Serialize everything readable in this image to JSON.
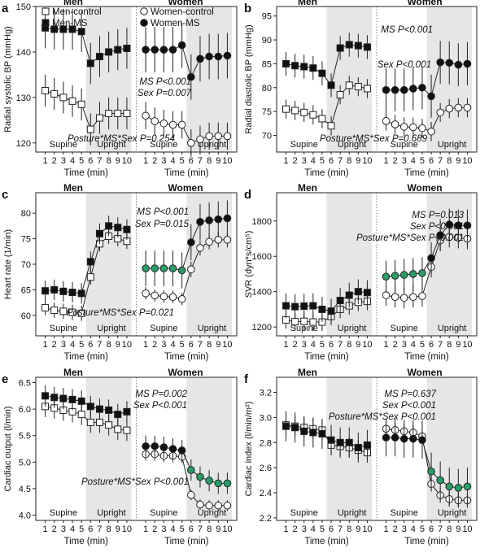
{
  "chart_data": [
    {
      "type": "line",
      "panel": "a",
      "ylabel": "Radial systolic BP (mmHg)",
      "xlabel": "Time (min)",
      "ylim": [
        118,
        150
      ],
      "yticks": [
        120,
        130,
        140,
        150
      ],
      "groups": [
        "Men",
        "Women"
      ],
      "phase_labels": [
        "Supine",
        "Upright"
      ],
      "x": [
        1,
        2,
        3,
        4,
        5,
        6,
        7,
        8,
        9,
        10
      ],
      "xtick_labels": [
        "1",
        "2",
        "3",
        "4",
        "5",
        "6",
        "7",
        "8",
        "9",
        "10"
      ],
      "legend": [
        "Men-control",
        "Men-MS",
        "Women-control",
        "Women-MS"
      ],
      "annotations": [
        "MS P<0.001",
        "Sex P=0.007",
        "Posture*MS*Sex P=0.254"
      ],
      "series": [
        {
          "name": "Men-control",
          "group": "Men",
          "marker": "open-square",
          "values": [
            131.5,
            130.8,
            130,
            129.2,
            128.5,
            123,
            125.5,
            126.5,
            126.5,
            126.5
          ],
          "err": [
            3.5,
            3.5,
            3.5,
            3.5,
            3.5,
            3.5,
            3.5,
            3.5,
            3.5,
            3.5
          ]
        },
        {
          "name": "Men-MS",
          "group": "Men",
          "marker": "filled-square",
          "values": [
            145.3,
            145,
            145,
            145,
            144.5,
            137.5,
            139,
            140,
            140.5,
            140.8
          ],
          "err": [
            4.5,
            4.5,
            4.5,
            4.5,
            4.5,
            4.5,
            4.5,
            4.5,
            4.5,
            4.5
          ]
        },
        {
          "name": "Women-control",
          "group": "Women",
          "marker": "open-circle",
          "values": [
            126,
            124.8,
            124.3,
            124,
            124,
            120,
            120.8,
            121.5,
            121.5,
            121.5
          ],
          "err": [
            3,
            3,
            3,
            3,
            3,
            3,
            3,
            3,
            3,
            3
          ]
        },
        {
          "name": "Women-MS",
          "group": "Women",
          "marker": "filled-circle",
          "values": [
            140.5,
            140.5,
            140.5,
            140.5,
            141.5,
            134.5,
            138.5,
            139,
            139,
            139.2
          ],
          "err": [
            5,
            5,
            5,
            5,
            5,
            5,
            5,
            5,
            5,
            5
          ]
        }
      ]
    },
    {
      "type": "line",
      "panel": "b",
      "ylabel": "Radial diastolic BP (mmHg)",
      "xlabel": "Time (min)",
      "ylim": [
        66.5,
        97
      ],
      "yticks": [
        70,
        75,
        80,
        85,
        90,
        95
      ],
      "groups": [
        "Men",
        "Women"
      ],
      "phase_labels": [
        "Supine",
        "Upright"
      ],
      "x": [
        1,
        2,
        3,
        4,
        5,
        6,
        7,
        8,
        9,
        10
      ],
      "xtick_labels": [
        "1",
        "2",
        "3",
        "4",
        "5",
        "6",
        "7",
        "8",
        "9",
        "10"
      ],
      "annotations": [
        "MS P<0.001",
        "Sex P<0.001",
        "Posture*MS*Sex P=0.689"
      ],
      "series": [
        {
          "name": "Men-control",
          "group": "Men",
          "marker": "open-square",
          "values": [
            75.5,
            75.2,
            74.8,
            74.3,
            73.5,
            72,
            78.5,
            80.5,
            80.2,
            79.8
          ],
          "err": [
            2,
            2,
            2,
            2,
            2,
            2,
            2,
            2,
            2,
            2
          ]
        },
        {
          "name": "Men-MS",
          "group": "Men",
          "marker": "filled-square",
          "values": [
            85,
            84.6,
            84.4,
            84.1,
            83,
            80.5,
            88.3,
            89,
            88.8,
            88.5
          ],
          "err": [
            2.5,
            2.5,
            2.5,
            2.5,
            2.5,
            2.5,
            2.5,
            2.5,
            2.5,
            2.5
          ]
        },
        {
          "name": "Women-control",
          "group": "Women",
          "marker": "open-circle",
          "values": [
            73,
            72.3,
            71.8,
            71.7,
            71.5,
            70.8,
            74.8,
            75.6,
            75.8,
            75.8
          ],
          "err": [
            2,
            2,
            2,
            2,
            2,
            2,
            2,
            2,
            2,
            2
          ]
        },
        {
          "name": "Women-MS",
          "group": "Women",
          "marker": "filled-circle",
          "values": [
            79.5,
            79.5,
            79.5,
            79.8,
            80,
            78.2,
            85.3,
            85.2,
            84.8,
            85
          ],
          "err": [
            4.5,
            4.5,
            4.5,
            4.5,
            4.5,
            4.5,
            4.5,
            4.5,
            4.5,
            4.5
          ]
        }
      ]
    },
    {
      "type": "line",
      "panel": "c",
      "ylabel": "Heart rate (1/min)",
      "xlabel": "Time (min)",
      "ylim": [
        56,
        84
      ],
      "yticks": [
        60,
        65,
        70,
        75,
        80
      ],
      "groups": [
        "Men",
        "Women"
      ],
      "phase_labels": [
        "Supine",
        "Upright"
      ],
      "x": [
        1,
        2,
        3,
        4,
        5,
        6,
        7,
        8,
        9,
        10
      ],
      "xtick_labels": [
        "1",
        "2",
        "3",
        "4",
        "5",
        "6",
        "7",
        "8",
        "9",
        "10"
      ],
      "annotations": [
        "MS P<0.001",
        "Sex P=0.015",
        "Posture*MS*Sex P=0.021"
      ],
      "series": [
        {
          "name": "Men-control",
          "group": "Men",
          "marker": "open-square",
          "values": [
            61.5,
            61,
            60.8,
            60.6,
            60.4,
            67.5,
            74,
            75.5,
            75,
            74.5
          ],
          "err": [
            1.5,
            1.5,
            1.5,
            1.5,
            1.5,
            1.5,
            1.5,
            1.5,
            1.5,
            1.5
          ]
        },
        {
          "name": "Men-MS",
          "group": "Men",
          "marker": "filled-square",
          "values": [
            64.8,
            65,
            64.7,
            64.5,
            64.3,
            70.5,
            76,
            77.5,
            77.2,
            76.8
          ],
          "err": [
            2,
            2,
            2,
            2,
            2,
            2,
            2,
            2,
            2,
            2
          ]
        },
        {
          "name": "Women-control",
          "group": "Women",
          "marker": "open-circle",
          "values": [
            64.3,
            63.9,
            63.7,
            63.6,
            63.2,
            69,
            73.2,
            74.4,
            74.8,
            74.8
          ],
          "err": [
            1.2,
            1.2,
            1.2,
            1.2,
            1.2,
            1.5,
            1.5,
            1.5,
            1.5,
            1.5
          ]
        },
        {
          "name": "Women-MS",
          "group": "Women",
          "marker": "filled-circle",
          "highlight_points": [
            0,
            1,
            2,
            3,
            4
          ],
          "values": [
            69.2,
            69.2,
            69.2,
            69.2,
            68.8,
            74.3,
            78.3,
            78.6,
            78.8,
            79
          ],
          "err": [
            3.5,
            3.5,
            3.5,
            3.5,
            3.5,
            3.5,
            3.5,
            3.5,
            3.5,
            3.5
          ]
        }
      ]
    },
    {
      "type": "line",
      "panel": "d",
      "ylabel": "SVR (dyn*s/cm⁵)",
      "xlabel": "Time (min)",
      "ylim": [
        1150,
        1960
      ],
      "yticks": [
        1200,
        1400,
        1600,
        1800
      ],
      "groups": [
        "Men",
        "Women"
      ],
      "phase_labels": [
        "Supine",
        "Upright"
      ],
      "x": [
        1,
        2,
        3,
        4,
        5,
        6,
        7,
        8,
        9,
        10
      ],
      "xtick_labels": [
        "1",
        "2",
        "3",
        "4",
        "5",
        "6",
        "7",
        "8",
        "9",
        "10"
      ],
      "annotations": [
        "MS P=0.013",
        "Sex P<0.001",
        "Posture*MS*Sex P<0.001"
      ],
      "series": [
        {
          "name": "Men-control",
          "group": "Men",
          "marker": "open-square",
          "values": [
            1240,
            1230,
            1232,
            1228,
            1228,
            1260,
            1300,
            1320,
            1340,
            1345
          ],
          "err": [
            50,
            50,
            50,
            50,
            50,
            50,
            50,
            50,
            50,
            50
          ]
        },
        {
          "name": "Men-MS",
          "group": "Men",
          "marker": "filled-square",
          "values": [
            1320,
            1315,
            1318,
            1320,
            1300,
            1290,
            1350,
            1380,
            1400,
            1395
          ],
          "err": [
            70,
            70,
            70,
            70,
            70,
            70,
            70,
            70,
            70,
            70
          ]
        },
        {
          "name": "Women-control",
          "group": "Women",
          "marker": "open-circle",
          "values": [
            1380,
            1370,
            1365,
            1370,
            1375,
            1540,
            1690,
            1710,
            1705,
            1700
          ],
          "err": [
            60,
            60,
            60,
            60,
            60,
            60,
            60,
            60,
            60,
            60
          ]
        },
        {
          "name": "Women-MS",
          "group": "Women",
          "marker": "filled-circle",
          "highlight_points": [
            0,
            1,
            2,
            3,
            4
          ],
          "values": [
            1485,
            1490,
            1495,
            1500,
            1505,
            1590,
            1720,
            1780,
            1775,
            1775
          ],
          "err": [
            90,
            90,
            90,
            90,
            90,
            90,
            90,
            90,
            90,
            90
          ]
        }
      ]
    },
    {
      "type": "line",
      "panel": "e",
      "ylabel": "Cardiac output (l/min)",
      "xlabel": "Time (min)",
      "ylim": [
        3.9,
        6.6
      ],
      "yticks": [
        4.0,
        4.5,
        5.0,
        5.5,
        6.0,
        6.5
      ],
      "tick_decimals": 1,
      "groups": [
        "Men",
        "Women"
      ],
      "phase_labels": [
        "Supine",
        "Upright"
      ],
      "x": [
        1,
        2,
        3,
        4,
        5,
        6,
        7,
        8,
        9,
        10
      ],
      "xtick_labels": [
        "1",
        "2",
        "3",
        "4",
        "5",
        "6",
        "7",
        "8",
        "9",
        "10"
      ],
      "annotations": [
        "MS P=0.002",
        "Sex P<0.001",
        "Posture*MS*Sex P<0.001"
      ],
      "series": [
        {
          "name": "Men-control",
          "group": "Men",
          "marker": "open-square",
          "values": [
            6.05,
            6.02,
            5.98,
            5.95,
            5.9,
            5.75,
            5.75,
            5.7,
            5.62,
            5.6
          ],
          "err": [
            0.2,
            0.2,
            0.2,
            0.2,
            0.2,
            0.2,
            0.2,
            0.2,
            0.2,
            0.2
          ]
        },
        {
          "name": "Men-MS",
          "group": "Men",
          "marker": "filled-square",
          "values": [
            6.25,
            6.22,
            6.2,
            6.18,
            6.15,
            6.05,
            6.0,
            5.98,
            5.9,
            5.95
          ],
          "err": [
            0.2,
            0.2,
            0.2,
            0.2,
            0.2,
            0.2,
            0.2,
            0.2,
            0.2,
            0.2
          ]
        },
        {
          "name": "Women-control",
          "group": "Women",
          "marker": "open-circle",
          "values": [
            5.15,
            5.15,
            5.12,
            5.12,
            5.1,
            4.38,
            4.2,
            4.18,
            4.18,
            4.18
          ],
          "err": [
            0.12,
            0.12,
            0.12,
            0.12,
            0.12,
            0.1,
            0.1,
            0.1,
            0.1,
            0.1
          ]
        },
        {
          "name": "Women-MS",
          "group": "Women",
          "marker": "filled-circle",
          "highlight_points": [
            5,
            6,
            7,
            8,
            9
          ],
          "values": [
            5.3,
            5.3,
            5.28,
            5.25,
            5.22,
            4.85,
            4.72,
            4.65,
            4.6,
            4.6
          ],
          "err": [
            0.2,
            0.2,
            0.2,
            0.2,
            0.2,
            0.2,
            0.2,
            0.2,
            0.2,
            0.2
          ]
        }
      ]
    },
    {
      "type": "line",
      "panel": "f",
      "ylabel": "Cardiac index (l/min/m²)",
      "xlabel": "Time (min)",
      "ylim": [
        2.18,
        3.32
      ],
      "yticks": [
        2.2,
        2.4,
        2.6,
        2.8,
        3.0,
        3.2
      ],
      "tick_decimals": 1,
      "groups": [
        "Men",
        "Women"
      ],
      "phase_labels": [
        "Supine",
        "Upright"
      ],
      "x": [
        1,
        2,
        3,
        4,
        5,
        6,
        7,
        8,
        9,
        10
      ],
      "xtick_labels": [
        "1",
        "2",
        "3",
        "4",
        "5",
        "6",
        "7",
        "8",
        "9",
        "10"
      ],
      "annotations": [
        "MS P=0.637",
        "Sex P<0.001",
        "Posture*MS*Sex P<0.001"
      ],
      "series": [
        {
          "name": "Men-control",
          "group": "Men",
          "marker": "open-square",
          "values": [
            2.94,
            2.93,
            2.92,
            2.91,
            2.9,
            2.78,
            2.77,
            2.76,
            2.74,
            2.72
          ],
          "err": [
            0.08,
            0.08,
            0.08,
            0.08,
            0.08,
            0.08,
            0.08,
            0.08,
            0.08,
            0.08
          ]
        },
        {
          "name": "Men-MS",
          "group": "Men",
          "marker": "filled-square",
          "values": [
            2.93,
            2.92,
            2.89,
            2.88,
            2.87,
            2.82,
            2.8,
            2.8,
            2.76,
            2.78
          ],
          "err": [
            0.12,
            0.12,
            0.12,
            0.12,
            0.12,
            0.12,
            0.12,
            0.12,
            0.12,
            0.12
          ]
        },
        {
          "name": "Women-control",
          "group": "Women",
          "marker": "open-circle",
          "values": [
            2.91,
            2.9,
            2.89,
            2.88,
            2.85,
            2.47,
            2.38,
            2.35,
            2.34,
            2.34
          ],
          "err": [
            0.06,
            0.06,
            0.06,
            0.06,
            0.06,
            0.06,
            0.06,
            0.06,
            0.06,
            0.06
          ]
        },
        {
          "name": "Women-MS",
          "group": "Women",
          "marker": "filled-circle",
          "highlight_points": [
            5,
            6,
            7,
            8,
            9
          ],
          "values": [
            2.84,
            2.84,
            2.83,
            2.83,
            2.82,
            2.57,
            2.5,
            2.45,
            2.44,
            2.45
          ],
          "err": [
            0.15,
            0.15,
            0.15,
            0.15,
            0.15,
            0.15,
            0.15,
            0.15,
            0.15,
            0.15
          ]
        }
      ]
    }
  ],
  "colors": {
    "filled": "#111111",
    "open_fill": "#ffffff",
    "highlight": "#2a9c67",
    "upright_band": "#e6e6e6",
    "divider": "#666666"
  }
}
